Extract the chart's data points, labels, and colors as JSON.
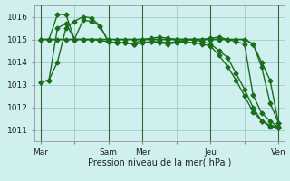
{
  "background_color": "#d0f0f0",
  "grid_color": "#a0cccc",
  "line_color": "#1a6e1a",
  "xlabel": "Pression niveau de la mer( hPa )",
  "ylim": [
    1010.5,
    1016.5
  ],
  "yticks": [
    1011,
    1012,
    1013,
    1014,
    1015,
    1016
  ],
  "xtick_labels": [
    "Mar",
    "",
    "Sam",
    "Mer",
    "",
    "Jeu",
    "",
    "Ven"
  ],
  "xtick_positions": [
    0,
    24,
    48,
    72,
    96,
    120,
    144,
    168
  ],
  "vlines": [
    0,
    48,
    72,
    120,
    168
  ],
  "series": [
    {
      "x": [
        0,
        6,
        12,
        18,
        24,
        30,
        36,
        42,
        48,
        54,
        60,
        66,
        72,
        78,
        84,
        90,
        96,
        102,
        108,
        114,
        120,
        126,
        132,
        138,
        144,
        150,
        156,
        162,
        168
      ],
      "y": [
        1013.1,
        1013.2,
        1015.5,
        1015.7,
        1015.0,
        1015.85,
        1015.8,
        1015.6,
        1014.9,
        1014.85,
        1014.85,
        1014.8,
        1014.85,
        1014.9,
        1014.85,
        1014.8,
        1014.85,
        1014.9,
        1014.85,
        1014.8,
        1014.7,
        1014.3,
        1013.8,
        1013.2,
        1012.5,
        1011.8,
        1011.4,
        1011.15,
        1011.1
      ]
    },
    {
      "x": [
        0,
        6,
        12,
        18,
        24,
        30,
        36,
        42,
        48,
        54,
        60,
        66,
        72,
        78,
        84,
        90,
        96,
        102,
        108,
        114,
        120,
        126,
        132,
        138,
        144,
        150,
        156,
        162,
        168
      ],
      "y": [
        1015.0,
        1015.0,
        1016.1,
        1016.1,
        1015.0,
        1015.0,
        1015.0,
        1014.95,
        1014.9,
        1014.85,
        1014.85,
        1014.8,
        1014.85,
        1014.9,
        1014.9,
        1014.85,
        1014.9,
        1014.95,
        1015.0,
        1014.9,
        1014.8,
        1014.5,
        1014.2,
        1013.5,
        1012.8,
        1012.0,
        1011.4,
        1011.2,
        1011.15
      ]
    },
    {
      "x": [
        0,
        24,
        48,
        72,
        96,
        120,
        132,
        144,
        150,
        156,
        162,
        168
      ],
      "y": [
        1015.0,
        1015.0,
        1015.0,
        1015.0,
        1015.0,
        1015.0,
        1015.0,
        1015.0,
        1014.8,
        1014.0,
        1013.2,
        1011.3
      ]
    },
    {
      "x": [
        0,
        6,
        12,
        18,
        24,
        30,
        36,
        42,
        48,
        54,
        60,
        66,
        72,
        78,
        84,
        90,
        96,
        102,
        108,
        114,
        120,
        126,
        132,
        138,
        144,
        150,
        156,
        162,
        168
      ],
      "y": [
        1015.0,
        1015.0,
        1015.0,
        1015.0,
        1015.0,
        1015.0,
        1015.0,
        1015.0,
        1015.0,
        1015.0,
        1015.0,
        1015.0,
        1015.0,
        1015.0,
        1015.0,
        1015.0,
        1015.0,
        1015.0,
        1015.0,
        1015.0,
        1015.0,
        1015.0,
        1015.0,
        1015.0,
        1015.0,
        1014.8,
        1013.8,
        1012.2,
        1011.3
      ]
    },
    {
      "x": [
        0,
        6,
        12,
        18,
        24,
        30,
        36,
        42,
        48,
        54,
        60,
        66,
        72,
        78,
        84,
        90,
        96,
        102,
        108,
        114,
        120,
        126,
        132,
        138,
        144,
        150,
        156,
        162,
        168
      ],
      "y": [
        1013.1,
        1013.2,
        1014.0,
        1015.5,
        1015.8,
        1016.0,
        1015.95,
        1015.6,
        1014.9,
        1014.85,
        1014.85,
        1014.8,
        1015.0,
        1015.05,
        1015.1,
        1015.05,
        1015.0,
        1015.0,
        1015.0,
        1015.0,
        1015.05,
        1015.1,
        1015.0,
        1014.9,
        1014.8,
        1012.55,
        1011.75,
        1011.4,
        1011.1
      ]
    }
  ],
  "marker": "D",
  "markersize": 2.5,
  "linewidth": 1.0
}
